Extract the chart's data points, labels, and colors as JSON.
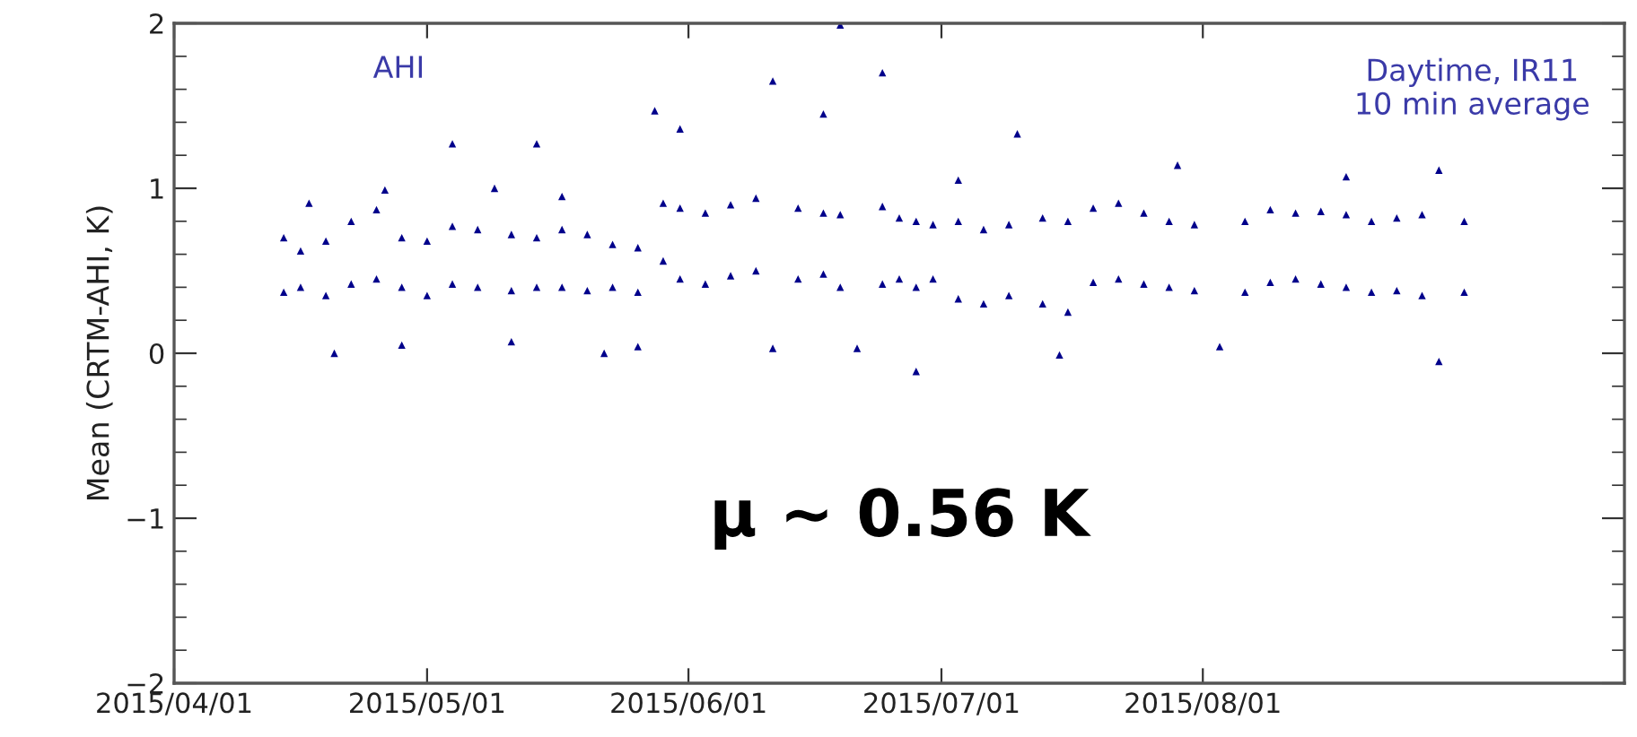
{
  "chart_data": {
    "type": "scatter",
    "ylabel": "Mean (CRTM-AHI, K)",
    "annotations": [
      "AHI",
      "Daytime, IR11\n10 min average",
      "μ ~ 0.56 K"
    ],
    "series": [
      {
        "color": "#00008b",
        "x": [
          "2015-04-14",
          "2015-04-14",
          "2015-04-16",
          "2015-04-16",
          "2015-04-17",
          "2015-04-19",
          "2015-04-19",
          "2015-04-20",
          "2015-04-22",
          "2015-04-22",
          "2015-04-25",
          "2015-04-25",
          "2015-04-26",
          "2015-04-28",
          "2015-04-28",
          "2015-04-28",
          "2015-05-01",
          "2015-05-01",
          "2015-05-04",
          "2015-05-04",
          "2015-05-04",
          "2015-05-07",
          "2015-05-07",
          "2015-05-09",
          "2015-05-11",
          "2015-05-11",
          "2015-05-11",
          "2015-05-14",
          "2015-05-14",
          "2015-05-14",
          "2015-05-17",
          "2015-05-17",
          "2015-05-17",
          "2015-05-20",
          "2015-05-20",
          "2015-05-22",
          "2015-05-23",
          "2015-05-23",
          "2015-05-26",
          "2015-05-26",
          "2015-05-26",
          "2015-05-28",
          "2015-05-29",
          "2015-05-29",
          "2015-05-31",
          "2015-05-31",
          "2015-05-31",
          "2015-06-03",
          "2015-06-03",
          "2015-06-06",
          "2015-06-06",
          "2015-06-09",
          "2015-06-09",
          "2015-06-11",
          "2015-06-11",
          "2015-06-14",
          "2015-06-14",
          "2015-06-17",
          "2015-06-17",
          "2015-06-17",
          "2015-06-19",
          "2015-06-19",
          "2015-06-19",
          "2015-06-21",
          "2015-06-24",
          "2015-06-24",
          "2015-06-24",
          "2015-06-26",
          "2015-06-26",
          "2015-06-28",
          "2015-06-28",
          "2015-06-28",
          "2015-06-30",
          "2015-06-30",
          "2015-07-03",
          "2015-07-03",
          "2015-07-03",
          "2015-07-06",
          "2015-07-06",
          "2015-07-09",
          "2015-07-09",
          "2015-07-10",
          "2015-07-13",
          "2015-07-13",
          "2015-07-15",
          "2015-07-16",
          "2015-07-16",
          "2015-07-19",
          "2015-07-19",
          "2015-07-22",
          "2015-07-22",
          "2015-07-25",
          "2015-07-25",
          "2015-07-28",
          "2015-07-28",
          "2015-07-29",
          "2015-07-31",
          "2015-07-31",
          "2015-08-03",
          "2015-08-06",
          "2015-08-06",
          "2015-08-09",
          "2015-08-09",
          "2015-08-12",
          "2015-08-12",
          "2015-08-15",
          "2015-08-15",
          "2015-08-18",
          "2015-08-18",
          "2015-08-18",
          "2015-08-21",
          "2015-08-21",
          "2015-08-24",
          "2015-08-24",
          "2015-08-27",
          "2015-08-27",
          "2015-08-29",
          "2015-08-29",
          "2015-09-01",
          "2015-09-01"
        ],
        "values": [
          0.7,
          0.37,
          0.62,
          0.4,
          0.91,
          0.68,
          0.35,
          0.0,
          0.8,
          0.42,
          0.87,
          0.45,
          0.99,
          0.7,
          0.4,
          0.05,
          0.68,
          0.35,
          0.77,
          0.42,
          1.27,
          0.75,
          0.4,
          1.0,
          0.72,
          0.38,
          0.07,
          1.27,
          0.7,
          0.4,
          0.75,
          0.4,
          0.95,
          0.72,
          0.38,
          0.0,
          0.66,
          0.4,
          0.64,
          0.37,
          0.04,
          1.47,
          0.91,
          0.56,
          0.88,
          0.45,
          1.36,
          0.85,
          0.42,
          0.9,
          0.47,
          0.94,
          0.5,
          1.65,
          0.03,
          0.88,
          0.45,
          1.45,
          0.85,
          0.48,
          1.99,
          0.84,
          0.4,
          0.03,
          1.7,
          0.89,
          0.42,
          0.82,
          0.45,
          -0.11,
          0.8,
          0.4,
          0.78,
          0.45,
          1.05,
          0.8,
          0.33,
          0.75,
          0.3,
          0.78,
          0.35,
          1.33,
          0.82,
          0.3,
          -0.01,
          0.8,
          0.25,
          0.88,
          0.43,
          0.91,
          0.45,
          0.85,
          0.42,
          0.8,
          0.4,
          1.14,
          0.78,
          0.38,
          0.04,
          0.8,
          0.37,
          0.87,
          0.43,
          0.85,
          0.45,
          0.86,
          0.42,
          1.07,
          0.84,
          0.4,
          0.8,
          0.37,
          0.82,
          0.38,
          0.84,
          0.35,
          1.11,
          -0.05,
          0.8,
          0.37
        ]
      }
    ],
    "xlim": [
      "2015-04-01",
      "2015-09-20"
    ],
    "xticks": [
      {
        "value": "2015-04-01",
        "label": "2015/04/01"
      },
      {
        "value": "2015-05-01",
        "label": "2015/05/01"
      },
      {
        "value": "2015-06-01",
        "label": "2015/06/01"
      },
      {
        "value": "2015-07-01",
        "label": "2015/07/01"
      },
      {
        "value": "2015-08-01",
        "label": "2015/08/01"
      }
    ],
    "ylim": [
      -2,
      2
    ],
    "yticks": [
      -2,
      -1,
      0,
      1,
      2
    ],
    "marker": "triangle"
  }
}
